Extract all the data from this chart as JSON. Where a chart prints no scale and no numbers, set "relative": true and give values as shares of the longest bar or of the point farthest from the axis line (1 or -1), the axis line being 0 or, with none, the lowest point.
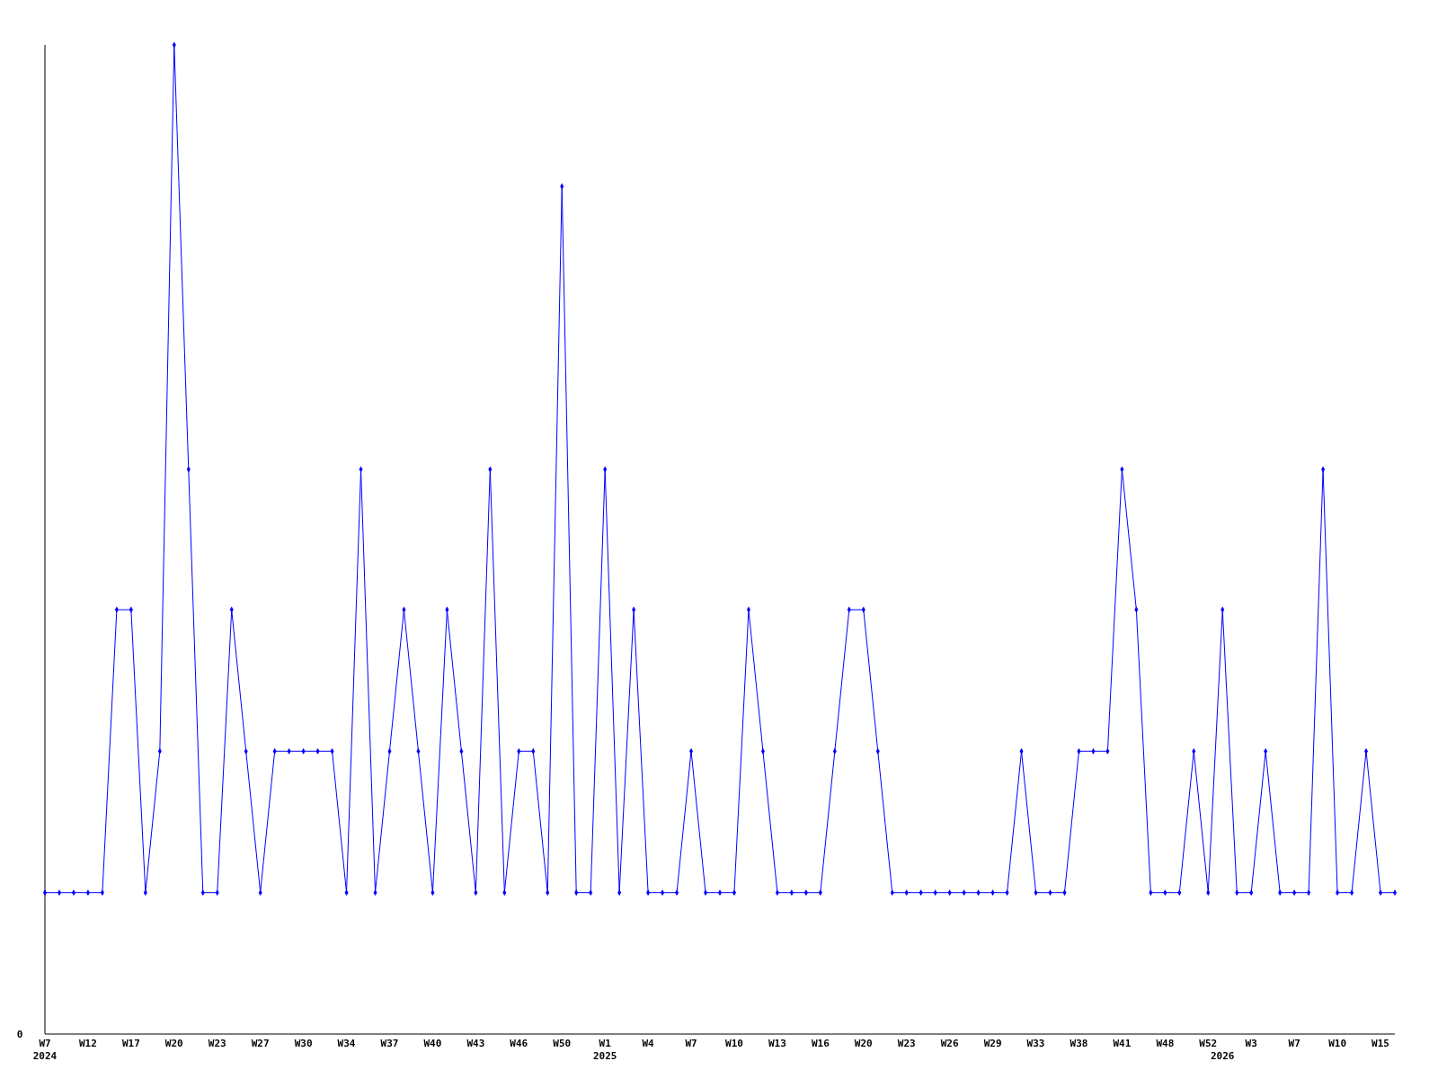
{
  "chart_data": {
    "type": "line",
    "relative": true,
    "marker": "diamond",
    "annotations": [
      "0"
    ],
    "categories": [
      "W7\n2024",
      null,
      null,
      "W12",
      null,
      null,
      "W17",
      null,
      null,
      "W20",
      null,
      null,
      "W23",
      null,
      null,
      "W27",
      null,
      null,
      "W30",
      null,
      null,
      "W34",
      null,
      null,
      "W37",
      null,
      null,
      "W40",
      null,
      null,
      "W43",
      null,
      null,
      "W46",
      null,
      null,
      "W50",
      null,
      null,
      "W1\n2025",
      null,
      null,
      "W4",
      null,
      null,
      "W7",
      null,
      null,
      "W10",
      null,
      null,
      "W13",
      null,
      null,
      "W16",
      null,
      null,
      "W20",
      null,
      null,
      "W23",
      null,
      null,
      "W26",
      null,
      null,
      "W29",
      null,
      null,
      "W33",
      null,
      null,
      "W38",
      null,
      null,
      "W41",
      null,
      null,
      "W48",
      null,
      null,
      "W52",
      "\n2026",
      null,
      "W3",
      null,
      null,
      "W7",
      null,
      null,
      "W10",
      null,
      null,
      "W15",
      null
    ],
    "series": [
      {
        "color": "#0000ff",
        "values": [
          0.143,
          0.143,
          0.143,
          0.143,
          0.143,
          0.429,
          0.429,
          0.143,
          0.286,
          1,
          0.571,
          0.143,
          0.143,
          0.429,
          0.286,
          0.143,
          0.286,
          0.286,
          0.286,
          0.286,
          0.286,
          0.143,
          0.571,
          0.143,
          0.286,
          0.429,
          0.286,
          0.143,
          0.429,
          0.286,
          0.143,
          0.571,
          0.143,
          0.286,
          0.286,
          0.143,
          0.857,
          0.143,
          0.143,
          0.571,
          0.143,
          0.429,
          0.143,
          0.143,
          0.143,
          0.286,
          0.143,
          0.143,
          0.143,
          0.429,
          0.286,
          0.143,
          0.143,
          0.143,
          0.143,
          0.286,
          0.429,
          0.429,
          0.286,
          0.143,
          0.143,
          0.143,
          0.143,
          0.143,
          0.143,
          0.143,
          0.143,
          0.143,
          0.286,
          0.143,
          0.143,
          0.143,
          0.286,
          0.286,
          0.286,
          0.571,
          0.429,
          0.143,
          0.143,
          0.143,
          0.286,
          0.143,
          0.429,
          0.143,
          0.143,
          0.286,
          0.143,
          0.143,
          0.143,
          0.571,
          0.143,
          0.143,
          0.286,
          0.143,
          0.143
        ]
      }
    ]
  }
}
